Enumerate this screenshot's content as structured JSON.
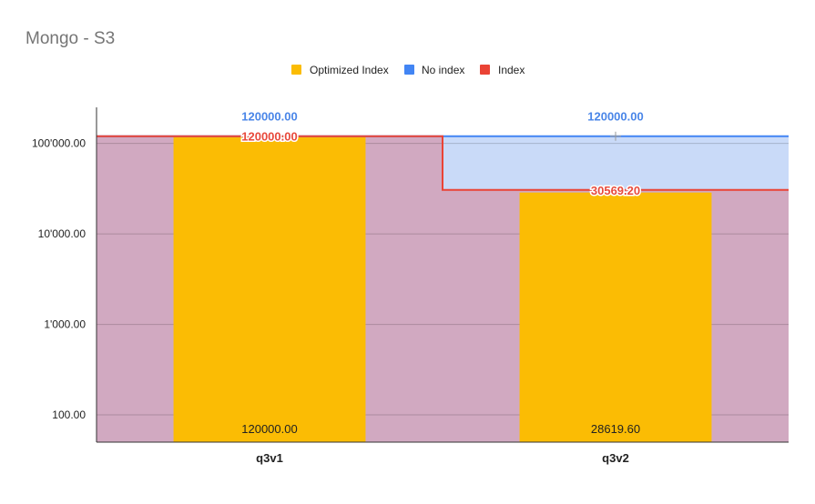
{
  "chart_data": {
    "type": "bar",
    "title": "Mongo - S3",
    "categories": [
      "q3v1",
      "q3v2"
    ],
    "y_scale": "log",
    "ylim": [
      50,
      250000
    ],
    "y_ticks": [
      {
        "value": 100,
        "label": "100.00"
      },
      {
        "value": 1000,
        "label": "1'000.00"
      },
      {
        "value": 10000,
        "label": "10'000.00"
      },
      {
        "value": 100000,
        "label": "100'000.00"
      }
    ],
    "grid": true,
    "legend": "top-center",
    "series": [
      {
        "name": "Optimized Index",
        "chart": "bar",
        "color": "#fbbc04",
        "values": [
          120000,
          28619.6
        ],
        "labels": [
          "120000.00",
          "28619.60"
        ]
      },
      {
        "name": "No index",
        "chart": "stepped-area",
        "color": "#4285f4",
        "fill": "#c9daf8",
        "values": [
          120000,
          120000
        ],
        "labels": [
          "120000.00",
          "120000.00"
        ]
      },
      {
        "name": "Index",
        "chart": "stepped-area",
        "color": "#ea4335",
        "fill": "#d1a9c1",
        "values": [
          120000,
          30569.2
        ],
        "labels": [
          "120000.00",
          "30569.20"
        ]
      }
    ]
  }
}
